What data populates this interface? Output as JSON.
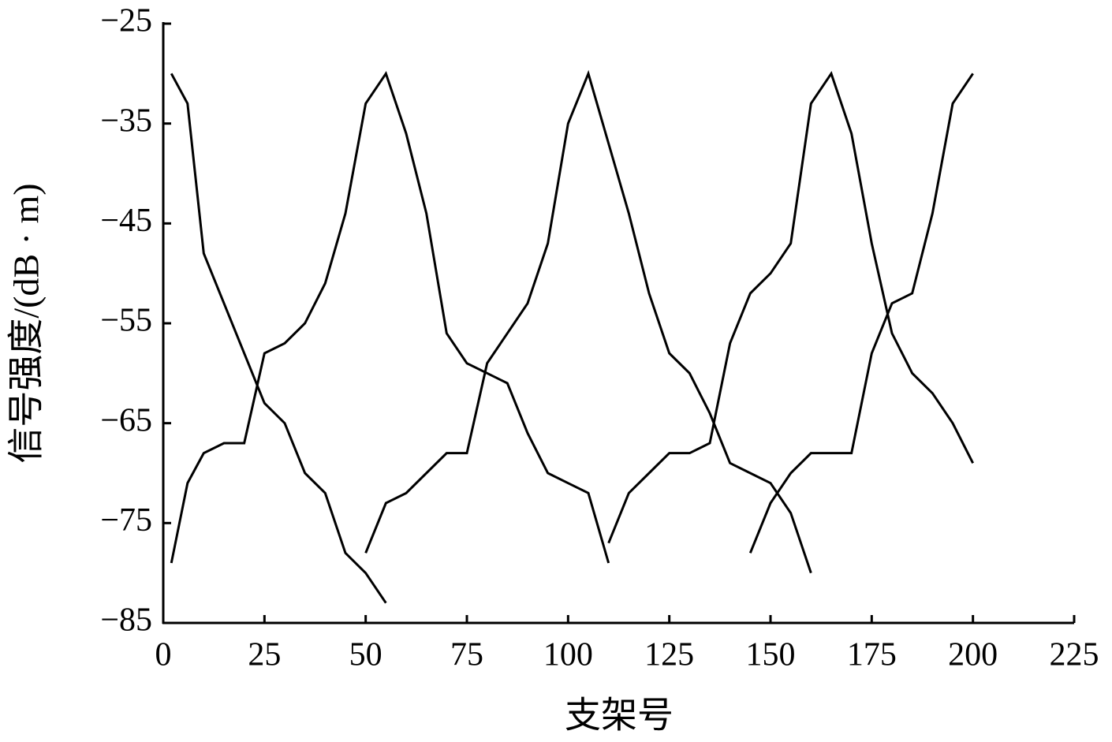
{
  "chart_data": {
    "type": "line",
    "xlabel": "支架号",
    "ylabel": "信号强度/(dB · m)",
    "xlim": [
      0,
      225
    ],
    "xticks": [
      0,
      25,
      50,
      75,
      100,
      125,
      150,
      175,
      200,
      225
    ],
    "ylim": [
      -85,
      -25
    ],
    "yticks": [
      {
        "value": -85,
        "label": "−85"
      },
      {
        "value": -75,
        "label": "−75"
      },
      {
        "value": -65,
        "label": "−65"
      },
      {
        "value": -55,
        "label": "−55"
      },
      {
        "value": -45,
        "label": "−45"
      },
      {
        "value": -35,
        "label": "−35"
      },
      {
        "value": -25,
        "label": "−25"
      }
    ],
    "series": [
      {
        "color": "#000000",
        "x": [
          2,
          6,
          10,
          25,
          30,
          35,
          40,
          45,
          50,
          55
        ],
        "values": [
          -30,
          -33,
          -48,
          -63,
          -65,
          -70,
          -72,
          -78,
          -80,
          -83
        ]
      },
      {
        "color": "#000000",
        "x": [
          2,
          6,
          10,
          15,
          20,
          25,
          30,
          35,
          40,
          45,
          50,
          55,
          60,
          65,
          70,
          75,
          80,
          85,
          90,
          95,
          100,
          105,
          110
        ],
        "values": [
          -79,
          -71,
          -68,
          -67,
          -67,
          -58,
          -57,
          -55,
          -51,
          -44,
          -33,
          -30,
          -36,
          -44,
          -56,
          -59,
          -60,
          -61,
          -66,
          -70,
          -71,
          -72,
          -79
        ]
      },
      {
        "color": "#000000",
        "x": [
          50,
          55,
          60,
          65,
          70,
          75,
          80,
          85,
          90,
          95,
          100,
          105,
          110,
          115,
          120,
          125,
          130,
          135,
          140,
          145,
          150,
          155,
          160
        ],
        "values": [
          -78,
          -73,
          -72,
          -70,
          -68,
          -68,
          -59,
          -56,
          -53,
          -47,
          -35,
          -30,
          -37,
          -44,
          -52,
          -58,
          -60,
          -64,
          -69,
          -70,
          -71,
          -74,
          -80
        ]
      },
      {
        "color": "#000000",
        "x": [
          110,
          115,
          120,
          125,
          130,
          135,
          140,
          145,
          150,
          155,
          160,
          165,
          170,
          175,
          180,
          185,
          190,
          195,
          200
        ],
        "values": [
          -77,
          -72,
          -70,
          -68,
          -68,
          -67,
          -57,
          -52,
          -50,
          -47,
          -33,
          -30,
          -36,
          -47,
          -56,
          -60,
          -62,
          -65,
          -69
        ]
      },
      {
        "color": "#000000",
        "x": [
          145,
          150,
          155,
          160,
          165,
          170,
          175,
          180,
          185,
          190,
          195,
          200
        ],
        "values": [
          -78,
          -73,
          -70,
          -68,
          -68,
          -68,
          -58,
          -53,
          -52,
          -44,
          -33,
          -30
        ]
      }
    ]
  }
}
